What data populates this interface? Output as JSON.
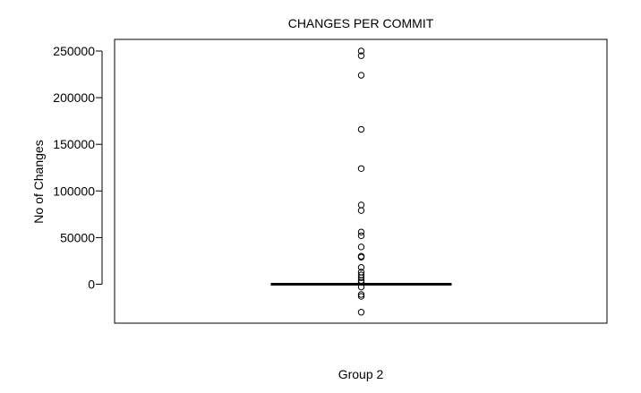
{
  "chart_data": {
    "type": "boxplot",
    "title": "CHANGES PER COMMIT",
    "xlabel": "Group 2",
    "ylabel": "No of Changes",
    "ylim": [
      -38000,
      262000
    ],
    "yticks": [
      0,
      50000,
      100000,
      150000,
      200000,
      250000
    ],
    "ytick_labels": [
      "0",
      "50000",
      "100000",
      "150000",
      "200000",
      "250000"
    ],
    "grid": false,
    "box": {
      "q1": 0,
      "median": 0,
      "q3": 0,
      "whisker_low": 0,
      "whisker_high": 0
    },
    "outliers": [
      250000,
      245000,
      224000,
      166000,
      124000,
      85000,
      79000,
      56000,
      52000,
      40000,
      30000,
      29000,
      18000,
      13000,
      10000,
      7000,
      4000,
      2000,
      -3000,
      -11000,
      -13000,
      -30000
    ]
  }
}
